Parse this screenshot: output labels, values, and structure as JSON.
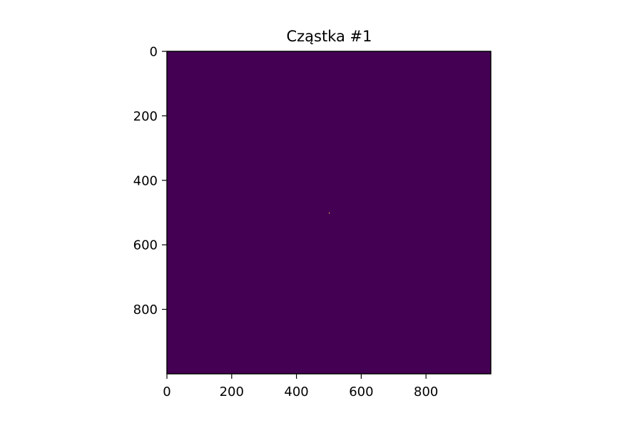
{
  "chart_data": {
    "type": "heatmap",
    "title": "Cząstka #1",
    "xlabel": "",
    "ylabel": "",
    "image_size": [
      1000,
      1000
    ],
    "xlim": [
      0,
      1000
    ],
    "ylim": [
      1000,
      0
    ],
    "y_inverted": true,
    "x_ticks": [
      0,
      200,
      400,
      600,
      800
    ],
    "y_ticks": [
      0,
      200,
      400,
      600,
      800
    ],
    "x_tick_labels": [
      "0",
      "200",
      "400",
      "600",
      "800"
    ],
    "y_tick_labels": [
      "0",
      "200",
      "400",
      "600",
      "800"
    ],
    "background_value": 0,
    "background_color": "#440154",
    "highlight_color": "#fde725",
    "hot_pixels": [
      {
        "x": 500,
        "y": 500,
        "value": 1
      }
    ],
    "grid": false,
    "legend": "none"
  }
}
